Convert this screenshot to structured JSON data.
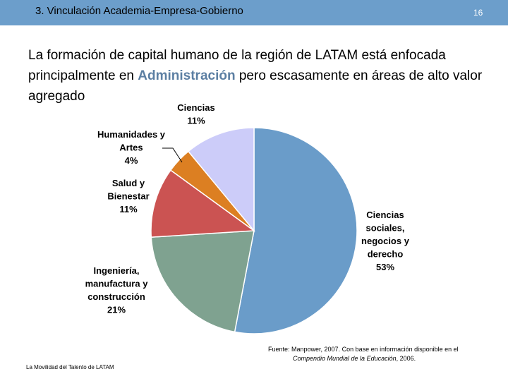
{
  "header": {
    "title": "3. Vinculación Academia-Empresa-Gobierno",
    "page_number": "16",
    "bar_color": "#6c9ecb"
  },
  "headline": {
    "before": "La formación de capital humano de la región de LATAM está enfocada principalmente en ",
    "highlight": "Administración",
    "after": " pero escasamente en áreas de alto valor agregado"
  },
  "chart_data": {
    "type": "pie",
    "title": "",
    "slices": [
      {
        "name": "Ciencias sociales, negocios y derecho",
        "value": 53,
        "percent_label": "53%",
        "label_lines": [
          "Ciencias",
          "sociales,",
          "negocios y",
          "derecho"
        ],
        "color": "#6a9cc9"
      },
      {
        "name": "Ingeniería, manufactura y construcción",
        "value": 21,
        "percent_label": "21%",
        "label_lines": [
          "Ingeniería,",
          "manufactura y",
          "construcción"
        ],
        "color": "#7fa290"
      },
      {
        "name": "Salud y Bienestar",
        "value": 11,
        "percent_label": "11%",
        "label_lines": [
          "Salud y",
          "Bienestar"
        ],
        "color": "#cb5352"
      },
      {
        "name": "Humanidades y Artes",
        "value": 4,
        "percent_label": "4%",
        "label_lines": [
          "Humanidades y",
          "Artes"
        ],
        "color": "#dc7f22"
      },
      {
        "name": "Ciencias",
        "value": 11,
        "percent_label": "11%",
        "label_lines": [
          "Ciencias"
        ],
        "color": "#ccccf9"
      }
    ]
  },
  "source": {
    "line1": "Fuente: Manpower, 2007. Con base en información disponible en el",
    "line2_italic": "Compendio Mundial de la Educación",
    "line2_rest": ", 2006."
  },
  "footer": {
    "text": "La Movilidad del Talento de LATAM"
  }
}
